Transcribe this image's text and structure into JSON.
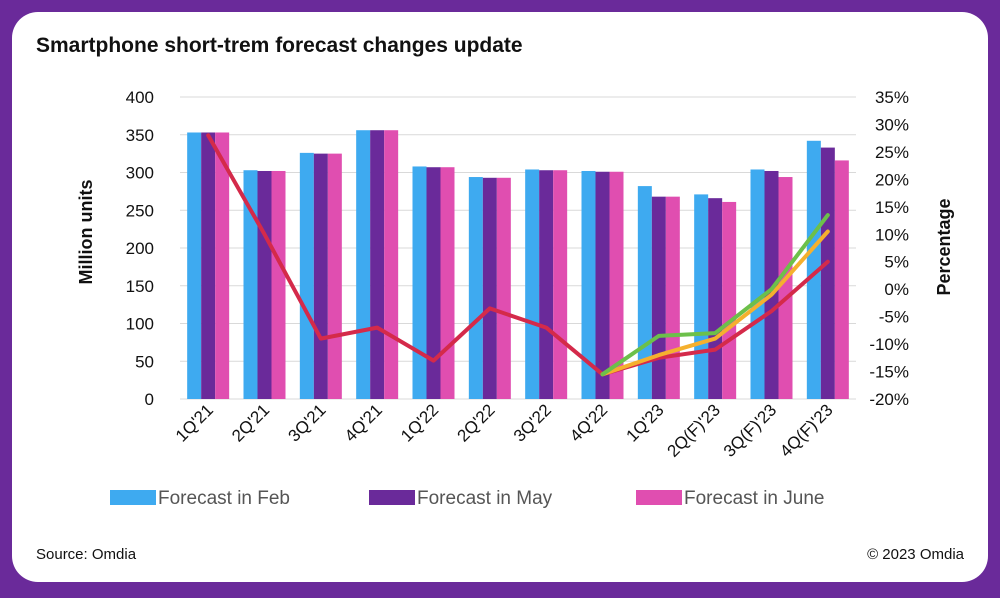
{
  "title": "Smartphone short-trem forecast changes update",
  "source": "Source: Omdia",
  "copyright": "© 2023 Omdia",
  "chart_data": {
    "type": "bar",
    "categories": [
      "1Q'21",
      "2Q'21",
      "3Q'21",
      "4Q'21",
      "1Q'22",
      "2Q'22",
      "3Q'22",
      "4Q'22",
      "1Q'23",
      "2Q(F)'23",
      "3Q(F)'23",
      "4Q(F)'23"
    ],
    "ylabel": "Million units",
    "y2label": "Percentage",
    "ylim": [
      0,
      400
    ],
    "yticks": [
      "0",
      "50",
      "100",
      "150",
      "200",
      "250",
      "300",
      "350",
      "400"
    ],
    "y2lim": [
      -20,
      35
    ],
    "y2ticks": [
      "-20%",
      "-15%",
      "-10%",
      "-5%",
      "0%",
      "5%",
      "10%",
      "15%",
      "20%",
      "25%",
      "30%",
      "35%"
    ],
    "series": [
      {
        "name": "Forecast in Feb",
        "color": "#3eaaf0",
        "values": [
          353,
          303,
          326,
          356,
          308,
          294,
          304,
          302,
          282,
          271,
          304,
          342
        ]
      },
      {
        "name": "Forecast in May",
        "color": "#6a2a9a",
        "values": [
          353,
          302,
          325,
          356,
          307,
          293,
          303,
          301,
          268,
          266,
          302,
          333
        ]
      },
      {
        "name": "Forecast in June",
        "color": "#e04eb0",
        "values": [
          353,
          302,
          325,
          356,
          307,
          293,
          303,
          301,
          268,
          261,
          294,
          316
        ]
      }
    ],
    "lines": [
      {
        "color": "#d42a4a",
        "values": [
          28,
          10,
          -9,
          -7,
          -13,
          -3.5,
          -7,
          -15.5,
          -12.5,
          -11,
          -4,
          5
        ]
      },
      {
        "color": "#f5b02e",
        "values": [
          null,
          null,
          null,
          null,
          null,
          null,
          null,
          -15.5,
          -12,
          -9,
          -1,
          10.5
        ]
      },
      {
        "color": "#6cc04a",
        "values": [
          null,
          null,
          null,
          null,
          null,
          null,
          null,
          -15.5,
          -8.5,
          -8,
          0,
          13.5
        ]
      }
    ],
    "grid": true,
    "legend": "bottom"
  }
}
